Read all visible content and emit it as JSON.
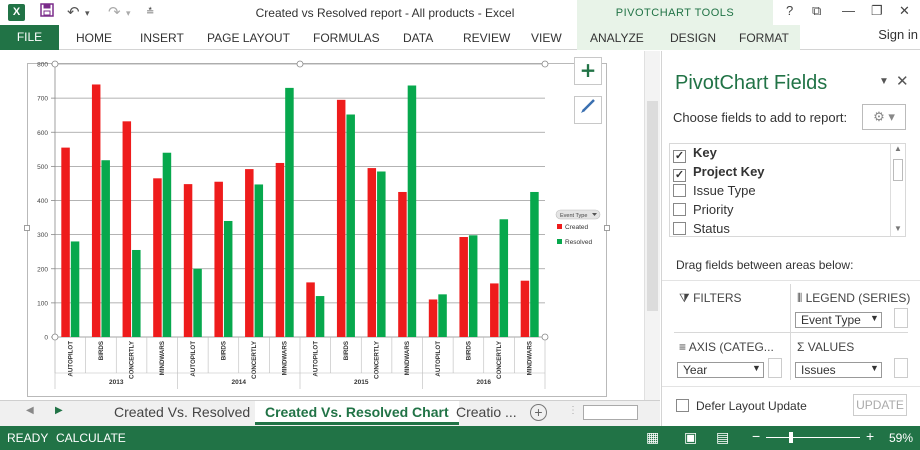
{
  "titlebar": {
    "title": "Created vs Resolved report - All products - Excel",
    "contextual_group": "PIVOTCHART TOOLS",
    "logo_text": "X"
  },
  "ribbon": {
    "file": "FILE",
    "tabs": [
      "HOME",
      "INSERT",
      "PAGE LAYOUT",
      "FORMULAS",
      "DATA",
      "REVIEW",
      "VIEW"
    ],
    "contextual_tabs": [
      "ANALYZE",
      "DESIGN",
      "FORMAT"
    ],
    "sign_in": "Sign in"
  },
  "chart_data": {
    "type": "bar",
    "ylim": [
      0,
      800
    ],
    "yticks": [
      0,
      100,
      200,
      300,
      400,
      500,
      600,
      700,
      800
    ],
    "groups": [
      {
        "label": "2013",
        "categories": [
          "AUTOPILOT",
          "BIRDS",
          "CONCERTLY",
          "MINDWARS"
        ]
      },
      {
        "label": "2014",
        "categories": [
          "AUTOPILOT",
          "BIRDS",
          "CONCERTLY",
          "MINDWARS"
        ]
      },
      {
        "label": "2015",
        "categories": [
          "AUTOPILOT",
          "BIRDS",
          "CONCERTLY",
          "MINDWARS"
        ]
      },
      {
        "label": "2016",
        "categories": [
          "AUTOPILOT",
          "BIRDS",
          "CONCERTLY",
          "MINDWARS"
        ]
      }
    ],
    "series": [
      {
        "name": "Created",
        "color": "#ee1c1c",
        "values": [
          555,
          740,
          632,
          465,
          448,
          455,
          492,
          510,
          160,
          695,
          495,
          425,
          110,
          293,
          157,
          165
        ]
      },
      {
        "name": "Resolved",
        "color": "#07a84d",
        "values": [
          280,
          518,
          255,
          540,
          200,
          340,
          447,
          730,
          120,
          652,
          485,
          737,
          125,
          298,
          345,
          425
        ]
      }
    ],
    "legend": {
      "title": "Event Type",
      "position": "right"
    },
    "grid": true
  },
  "sheets": {
    "tabs": [
      "Created Vs. Resolved",
      "Created Vs. Resolved Chart",
      "Creatio ..."
    ],
    "active": "Created Vs. Resolved Chart"
  },
  "status": {
    "ready": "READY",
    "calculate": "CALCULATE",
    "zoom": "59%"
  },
  "pane": {
    "title": "PivotChart Fields",
    "subtitle": "Choose fields to add to report:",
    "fields": [
      {
        "label": "Key",
        "checked": true
      },
      {
        "label": "Project Key",
        "checked": true
      },
      {
        "label": "Issue Type",
        "checked": false
      },
      {
        "label": "Priority",
        "checked": false
      },
      {
        "label": "Status",
        "checked": false
      }
    ],
    "drag_label": "Drag fields between areas below:",
    "areas": {
      "filters": "FILTERS",
      "legend": "LEGEND (SERIES)",
      "legend_value": "Event Type",
      "axis": "AXIS (CATEG...",
      "axis_value": "Year",
      "values": "VALUES",
      "values_value": "Issues"
    },
    "defer_label": "Defer Layout Update",
    "update_label": "UPDATE"
  }
}
